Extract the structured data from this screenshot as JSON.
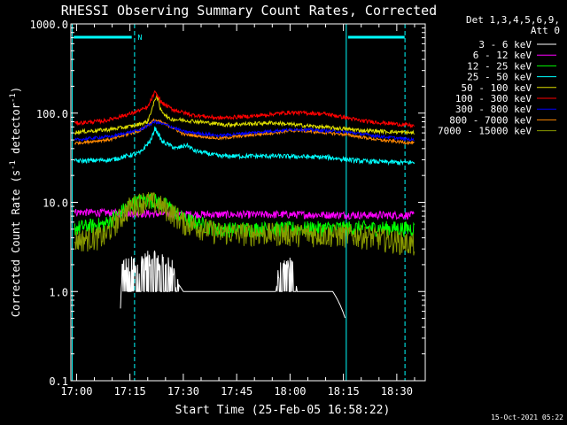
{
  "chart_data": {
    "type": "line",
    "title": "RHESSI Observing Summary Count Rates, Corrected",
    "xlabel": "Start Time (25-Feb-05 16:58:22)",
    "ylabel_main": "Corrected Count Rate (s",
    "ylabel_sup1": "-1",
    "ylabel_mid": " detector",
    "ylabel_sup2": "-1",
    "ylabel_end": ")",
    "yscale": "log",
    "ylim": [
      0.1,
      1000
    ],
    "xlim_minutes": [
      -1.6,
      98
    ],
    "x_ticks": [
      {
        "label": "17:00",
        "minutes": 0
      },
      {
        "label": "17:15",
        "minutes": 15
      },
      {
        "label": "17:30",
        "minutes": 30
      },
      {
        "label": "17:45",
        "minutes": 45
      },
      {
        "label": "18:00",
        "minutes": 60
      },
      {
        "label": "18:15",
        "minutes": 75
      },
      {
        "label": "18:30",
        "minutes": 90
      }
    ],
    "y_ticks": [
      {
        "label": "1000.0",
        "value": 1000
      },
      {
        "label": "100.0",
        "value": 100
      },
      {
        "label": "10.0",
        "value": 10
      },
      {
        "label": "1.0",
        "value": 1
      },
      {
        "label": "0.1",
        "value": 0.1
      }
    ],
    "legend_header_1": "Det 1,3,4,5,6,9,",
    "legend_header_2": "Att 0",
    "series": [
      {
        "name": "3 - 6 keV",
        "color": "#000000",
        "knots": [
          [
            -0.5,
            0
          ],
          [
            4,
            0
          ],
          [
            12,
            0
          ],
          [
            13,
            1.9
          ],
          [
            15,
            1.9
          ],
          [
            18,
            2.0
          ],
          [
            20,
            2.2
          ],
          [
            21,
            2.4
          ],
          [
            23,
            2.0
          ],
          [
            26,
            2.1
          ],
          [
            28,
            1.3
          ],
          [
            30,
            1.0
          ],
          [
            40,
            1.0
          ],
          [
            56,
            1.0
          ],
          [
            57,
            1.6
          ],
          [
            60,
            2.0
          ],
          [
            61,
            1.7
          ],
          [
            62,
            1.0
          ],
          [
            72,
            1.0
          ],
          [
            79,
            0
          ]
        ]
      },
      {
        "name": "6 - 12 keV",
        "color": "#ff00ff",
        "knots": [
          [
            -0.5,
            7.8
          ],
          [
            10,
            7.6
          ],
          [
            18,
            7.5
          ],
          [
            25,
            7.4
          ],
          [
            40,
            7.3
          ],
          [
            60,
            7.3
          ],
          [
            80,
            7.2
          ],
          [
            95,
            7.2
          ]
        ]
      },
      {
        "name": "12 - 25 keV",
        "color": "#00ff00",
        "knots": [
          [
            -0.5,
            5.2
          ],
          [
            8,
            5.7
          ],
          [
            12,
            7.5
          ],
          [
            15,
            9.5
          ],
          [
            19,
            10.8
          ],
          [
            22,
            10.5
          ],
          [
            26,
            9.0
          ],
          [
            30,
            6.5
          ],
          [
            40,
            5.0
          ],
          [
            60,
            5.1
          ],
          [
            80,
            5.2
          ],
          [
            95,
            5.1
          ]
        ]
      },
      {
        "name": "25 - 50 keV",
        "color": "#00ffff",
        "knots": [
          [
            -0.5,
            29
          ],
          [
            10,
            30
          ],
          [
            18,
            36
          ],
          [
            21,
            50
          ],
          [
            22,
            68
          ],
          [
            24,
            48
          ],
          [
            28,
            40
          ],
          [
            31,
            44
          ],
          [
            33,
            38
          ],
          [
            40,
            33
          ],
          [
            55,
            33
          ],
          [
            70,
            32
          ],
          [
            80,
            29
          ],
          [
            90,
            28
          ],
          [
            95,
            28
          ]
        ]
      },
      {
        "name": "50 - 100 keV",
        "color": "#dddd00",
        "knots": [
          [
            -0.5,
            61
          ],
          [
            10,
            66
          ],
          [
            16,
            72
          ],
          [
            20,
            80
          ],
          [
            21.5,
            120
          ],
          [
            22.5,
            160
          ],
          [
            23.5,
            110
          ],
          [
            26,
            86
          ],
          [
            32,
            82
          ],
          [
            42,
            74
          ],
          [
            55,
            78
          ],
          [
            65,
            72
          ],
          [
            80,
            64
          ],
          [
            95,
            60
          ]
        ]
      },
      {
        "name": "100 - 300 keV",
        "color": "#ff0000",
        "knots": [
          [
            -0.5,
            77
          ],
          [
            8,
            82
          ],
          [
            15,
            98
          ],
          [
            20,
            115
          ],
          [
            22,
            170
          ],
          [
            24,
            130
          ],
          [
            27,
            110
          ],
          [
            32,
            96
          ],
          [
            40,
            88
          ],
          [
            50,
            93
          ],
          [
            60,
            102
          ],
          [
            70,
            98
          ],
          [
            80,
            82
          ],
          [
            95,
            72
          ]
        ]
      },
      {
        "name": "300 - 800 keV",
        "color": "#0000ff",
        "knots": [
          [
            -0.5,
            50
          ],
          [
            10,
            55
          ],
          [
            18,
            65
          ],
          [
            22,
            80
          ],
          [
            26,
            72
          ],
          [
            30,
            62
          ],
          [
            40,
            56
          ],
          [
            55,
            63
          ],
          [
            62,
            66
          ],
          [
            75,
            62
          ],
          [
            85,
            55
          ],
          [
            95,
            50
          ]
        ]
      },
      {
        "name": "800 - 7000 keV",
        "color": "#ff8800",
        "knots": [
          [
            -0.5,
            46
          ],
          [
            10,
            51
          ],
          [
            18,
            64
          ],
          [
            22,
            84
          ],
          [
            26,
            72
          ],
          [
            30,
            58
          ],
          [
            40,
            52
          ],
          [
            55,
            60
          ],
          [
            62,
            64
          ],
          [
            75,
            58
          ],
          [
            85,
            50
          ],
          [
            95,
            46
          ]
        ]
      },
      {
        "name": "7000 - 15000 keV",
        "color": "#889900",
        "knots": [
          [
            -0.5,
            3.8
          ],
          [
            8,
            4.2
          ],
          [
            12,
            6.5
          ],
          [
            15,
            9.0
          ],
          [
            19,
            10.5
          ],
          [
            22,
            10.0
          ],
          [
            26,
            8.2
          ],
          [
            30,
            6.0
          ],
          [
            40,
            4.6
          ],
          [
            60,
            4.5
          ],
          [
            80,
            4.3
          ],
          [
            92,
            3.6
          ],
          [
            95,
            3.4
          ]
        ]
      }
    ],
    "dashed_lines_minutes": [
      16.3,
      92.3
    ],
    "solid_lines_minutes": [
      -1.2,
      75.8
    ],
    "top_bars_minutes": [
      [
        -0.8,
        15.5
      ],
      [
        76.3,
        92.2
      ]
    ],
    "top_marker_label": "N",
    "top_marker_minutes": 17.8,
    "colors": {
      "axes": "#ffffff",
      "cyan": "#00ffff"
    },
    "timestamp": "15-Oct-2021 05:22"
  }
}
